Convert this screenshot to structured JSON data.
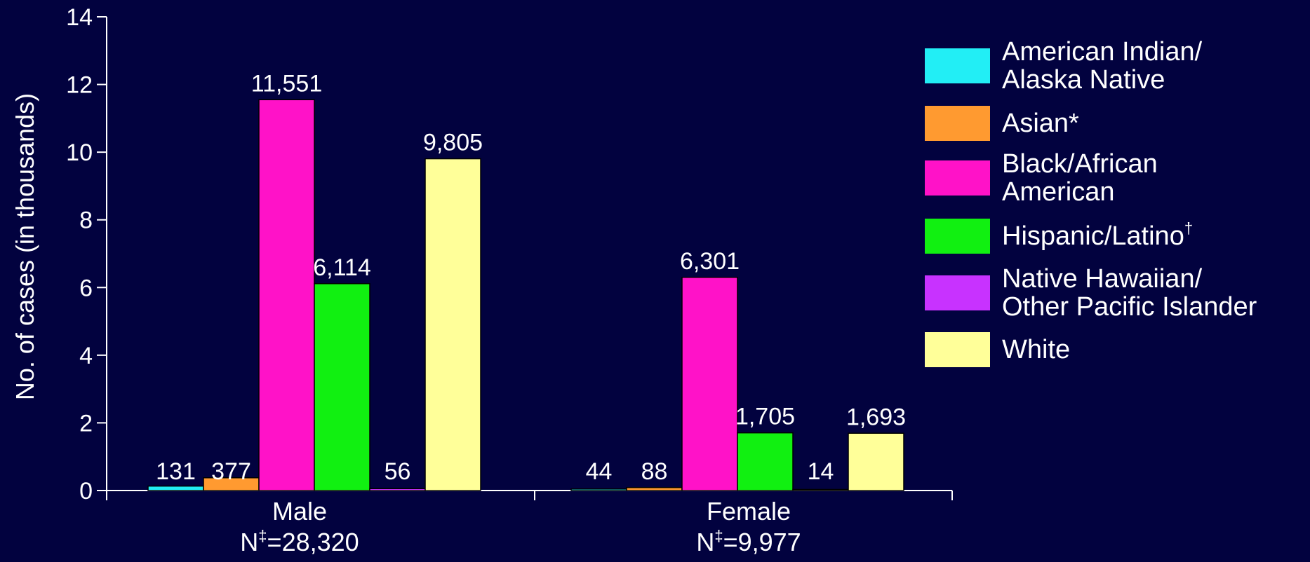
{
  "colors": {
    "background": "#02023f",
    "axis": "#ffffff",
    "series": [
      "#22eef5",
      "#ff9a30",
      "#ff12c8",
      "#11f011",
      "#c832ff",
      "#ffff99"
    ]
  },
  "chart_data": {
    "type": "bar",
    "ylabel": "No. of cases (in thousands)",
    "ylim": [
      0,
      14
    ],
    "yticks": [
      "0",
      "2",
      "4",
      "6",
      "8",
      "10",
      "12",
      "14"
    ],
    "categories": [
      {
        "name": "Male",
        "n_prefix": "N",
        "n_mark": "‡",
        "n_value": "=28,320"
      },
      {
        "name": "Female",
        "n_prefix": "N",
        "n_mark": "‡",
        "n_value": "=9,977"
      }
    ],
    "series": [
      {
        "legend_lines": [
          "American Indian/",
          "Alaska Native"
        ],
        "legend_mark": "",
        "values": [
          0.131,
          0.044
        ],
        "labels": [
          "131",
          "44"
        ]
      },
      {
        "legend_lines": [
          "Asian*"
        ],
        "legend_mark": "",
        "values": [
          0.377,
          0.088
        ],
        "labels": [
          "377",
          "88"
        ]
      },
      {
        "legend_lines": [
          "Black/African",
          "American"
        ],
        "legend_mark": "",
        "values": [
          11.551,
          6.301
        ],
        "labels": [
          "11,551",
          "6,301"
        ]
      },
      {
        "legend_lines": [
          "Hispanic/Latino"
        ],
        "legend_mark": "†",
        "values": [
          6.114,
          1.705
        ],
        "labels": [
          "6,114",
          "1,705"
        ]
      },
      {
        "legend_lines": [
          "Native Hawaiian/",
          "Other Pacific Islander"
        ],
        "legend_mark": "",
        "values": [
          0.056,
          0.014
        ],
        "labels": [
          "56",
          "14"
        ]
      },
      {
        "legend_lines": [
          "White"
        ],
        "legend_mark": "",
        "values": [
          9.805,
          1.693
        ],
        "labels": [
          "9,805",
          "1,693"
        ]
      }
    ]
  }
}
